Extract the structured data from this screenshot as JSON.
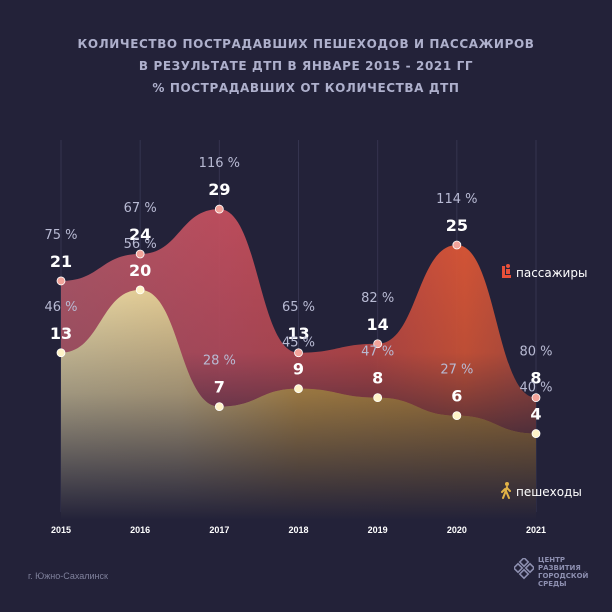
{
  "title": {
    "line1": "КОЛИЧЕСТВО ПОСТРАДАВШИХ ПЕШЕХОДОВ И ПАССАЖИРОВ",
    "line2": "В РЕЗУЛЬТАТЕ ДТП В ЯНВАРЕ 2015 - 2021 ГГ",
    "line3": "% ПОСТРАДАВШИХ ОТ КОЛИЧЕСТВА ДТП"
  },
  "footer": {
    "city": "г. Южно-Сахалинск",
    "logo_lines": [
      "ЦЕНТР",
      "РАЗВИТИЯ",
      "ГОРОДСКОЙ",
      "СРЕДЫ"
    ]
  },
  "colors": {
    "background": "#232239",
    "passengers": "#e45a3c",
    "pedestrians": "#e2b347",
    "text": "#ffffff",
    "muted": "#aeb0cc"
  },
  "chart_data": {
    "type": "area",
    "x": [
      "2015",
      "2016",
      "2017",
      "2018",
      "2019",
      "2020",
      "2021"
    ],
    "series": [
      {
        "name": "пассажиры",
        "icon": "passenger-icon",
        "values": [
          21,
          24,
          29,
          13,
          14,
          25,
          8
        ],
        "percent_labels": [
          "75 %",
          "67 %",
          "116 %",
          "65 %",
          "82 %",
          "114 %",
          "80 %"
        ]
      },
      {
        "name": "пешеходы",
        "icon": "pedestrian-icon",
        "values": [
          13,
          20,
          7,
          9,
          8,
          6,
          4
        ],
        "percent_labels": [
          "46 %",
          "56 %",
          "28 %",
          "45 %",
          "47 %",
          "27 %",
          "40 %"
        ]
      }
    ],
    "ylim": [
      0,
      30
    ],
    "grid": "vertical",
    "legend": "right"
  }
}
